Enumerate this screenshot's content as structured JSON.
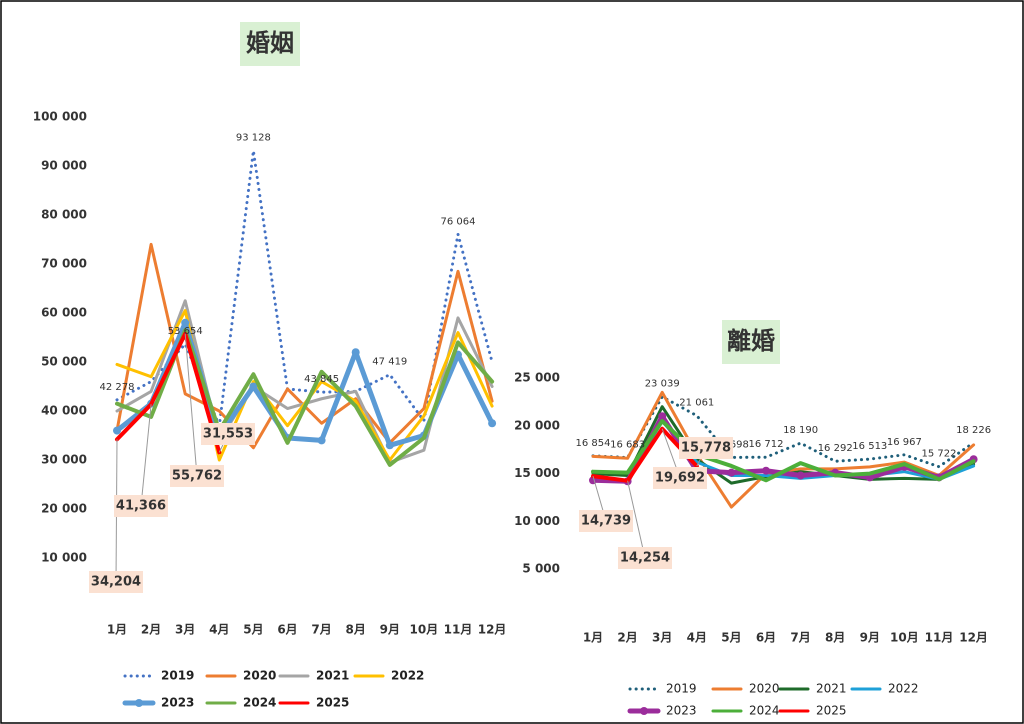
{
  "chart_data": [
    {
      "type": "line",
      "title": "婚姻",
      "categories": [
        "1月",
        "2月",
        "3月",
        "4月",
        "5月",
        "6月",
        "7月",
        "8月",
        "9月",
        "10月",
        "11月",
        "12月"
      ],
      "ylim": [
        0,
        100000
      ],
      "yticks": [
        {
          "value": 10000,
          "label": "10 000"
        },
        {
          "value": 20000,
          "label": "20 000"
        },
        {
          "value": 30000,
          "label": "30 000"
        },
        {
          "value": 40000,
          "label": "40 000"
        },
        {
          "value": 50000,
          "label": "50 000"
        },
        {
          "value": 60000,
          "label": "60 000"
        },
        {
          "value": 70000,
          "label": "70 000"
        },
        {
          "value": 80000,
          "label": "80 000"
        },
        {
          "value": 90000,
          "label": "90 000"
        },
        {
          "value": 100000,
          "label": "100 000"
        }
      ],
      "series": [
        {
          "name": "2019",
          "color": "#4472c4",
          "style": "dotted",
          "values": [
            42278,
            46000,
            53654,
            37000,
            93128,
            44500,
            43845,
            44000,
            47419,
            38000,
            76064,
            50000
          ],
          "value_labels": [
            "42 278",
            null,
            "53 654",
            null,
            "93 128",
            null,
            "43 845",
            null,
            "47 419",
            null,
            "76 064",
            null
          ]
        },
        {
          "name": "2020",
          "color": "#ed7d31",
          "values": [
            36000,
            74000,
            43500,
            40000,
            32500,
            44500,
            37500,
            42500,
            33500,
            40500,
            68500,
            42000
          ]
        },
        {
          "name": "2021",
          "color": "#a5a5a5",
          "values": [
            40000,
            44000,
            62500,
            34000,
            45000,
            40500,
            42500,
            44000,
            29500,
            32000,
            59000,
            45000
          ]
        },
        {
          "name": "2022",
          "color": "#ffc000",
          "values": [
            49500,
            47000,
            60500,
            30000,
            46000,
            37000,
            46000,
            42000,
            30000,
            39000,
            56000,
            41000
          ]
        },
        {
          "name": "2023",
          "color": "#5b9bd5",
          "marker": "circle",
          "values": [
            36000,
            41500,
            58000,
            35000,
            45000,
            34500,
            34000,
            52000,
            33000,
            35000,
            51500,
            37500
          ]
        },
        {
          "name": "2024",
          "color": "#70ad47",
          "values": [
            41500,
            38800,
            56500,
            36000,
            47500,
            33500,
            48000,
            41000,
            29000,
            34500,
            54000,
            46000
          ]
        },
        {
          "name": "2025",
          "color": "#ff0000",
          "values": [
            34204,
            41366,
            55762,
            31553,
            null,
            null,
            null,
            null,
            null,
            null,
            null,
            null
          ],
          "value_labels": [
            "34,204",
            "41,366",
            "55,762",
            "31,553",
            null,
            null,
            null,
            null,
            null,
            null,
            null,
            null
          ]
        }
      ]
    },
    {
      "type": "line",
      "title": "離婚",
      "categories": [
        "1月",
        "2月",
        "3月",
        "4月",
        "5月",
        "6月",
        "7月",
        "8月",
        "9月",
        "10月",
        "11月",
        "12月"
      ],
      "ylim": [
        0,
        25000
      ],
      "yticks": [
        {
          "value": 5000,
          "label": "5 000"
        },
        {
          "value": 10000,
          "label": "10 000"
        },
        {
          "value": 15000,
          "label": "15 000"
        },
        {
          "value": 20000,
          "label": "20 000"
        },
        {
          "value": 25000,
          "label": "25 000"
        }
      ],
      "series": [
        {
          "name": "2019",
          "color": "#1f5f7a",
          "style": "dotted",
          "values": [
            16854,
            16683,
            23039,
            21061,
            16698,
            16712,
            18190,
            16292,
            16513,
            16967,
            15722,
            18226
          ],
          "value_labels": [
            "16 854",
            "16 683",
            "23 039",
            "21 061",
            "16 698",
            "16 712",
            "18 190",
            "16 292",
            "16 513",
            "16 967",
            "15 722",
            "18 226"
          ]
        },
        {
          "name": "2020",
          "color": "#ed7d31",
          "values": [
            16800,
            16600,
            23500,
            17000,
            11500,
            15000,
            15500,
            15500,
            15700,
            16200,
            14800,
            18000
          ]
        },
        {
          "name": "2021",
          "color": "#1e6b2a",
          "values": [
            15000,
            14800,
            22000,
            16500,
            14000,
            14700,
            15200,
            14800,
            14400,
            14500,
            14400,
            16000
          ]
        },
        {
          "name": "2022",
          "color": "#1ea0d8",
          "values": [
            14500,
            14300,
            20500,
            16200,
            14800,
            14800,
            14500,
            14800,
            14800,
            15200,
            14400,
            15800
          ]
        },
        {
          "name": "2023",
          "color": "#9b2d9b",
          "marker": "circle",
          "values": [
            14300,
            14200,
            21000,
            15300,
            15100,
            15300,
            14800,
            15100,
            14600,
            15700,
            14600,
            16500
          ]
        },
        {
          "name": "2024",
          "color": "#4caf3a",
          "values": [
            15200,
            15100,
            20500,
            17000,
            15800,
            14300,
            16100,
            14800,
            15000,
            16000,
            14400,
            16300
          ]
        },
        {
          "name": "2025",
          "color": "#ff0000",
          "values": [
            14739,
            14254,
            19692,
            15778,
            null,
            null,
            null,
            null,
            null,
            null,
            null,
            null
          ],
          "value_labels": [
            "14,739",
            "14,254",
            "19,692",
            "15,778",
            null,
            null,
            null,
            null,
            null,
            null,
            null,
            null
          ]
        }
      ]
    }
  ]
}
